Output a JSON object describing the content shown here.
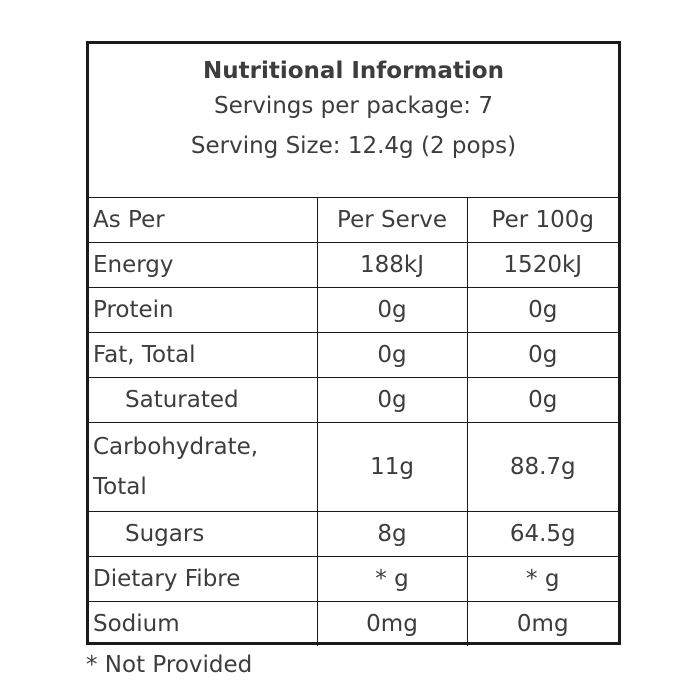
{
  "header": {
    "title": "Nutritional Information",
    "servings": "Servings per package: 7",
    "serving_size": "Serving Size: 12.4g (2 pops)"
  },
  "table": {
    "columns": [
      "As Per",
      "Per Serve",
      "Per 100g"
    ],
    "rows": [
      {
        "label": "Energy",
        "per_serve": "188kJ",
        "per_100g": "1520kJ"
      },
      {
        "label": "Protein",
        "per_serve": "0g",
        "per_100g": "0g"
      },
      {
        "label": "Fat, Total",
        "per_serve": "0g",
        "per_100g": "0g"
      },
      {
        "label": "Saturated",
        "per_serve": "0g",
        "per_100g": "0g"
      },
      {
        "label_line1": "Carbohydrate,",
        "label_line2": "Total",
        "per_serve": "11g",
        "per_100g": "88.7g"
      },
      {
        "label": "Sugars",
        "per_serve": "8g",
        "per_100g": "64.5g"
      },
      {
        "label": "Dietary Fibre",
        "per_serve": "* g",
        "per_100g": "* g"
      },
      {
        "label": "Sodium",
        "per_serve": "0mg",
        "per_100g": "0mg"
      }
    ]
  },
  "footnote": "* Not Provided"
}
